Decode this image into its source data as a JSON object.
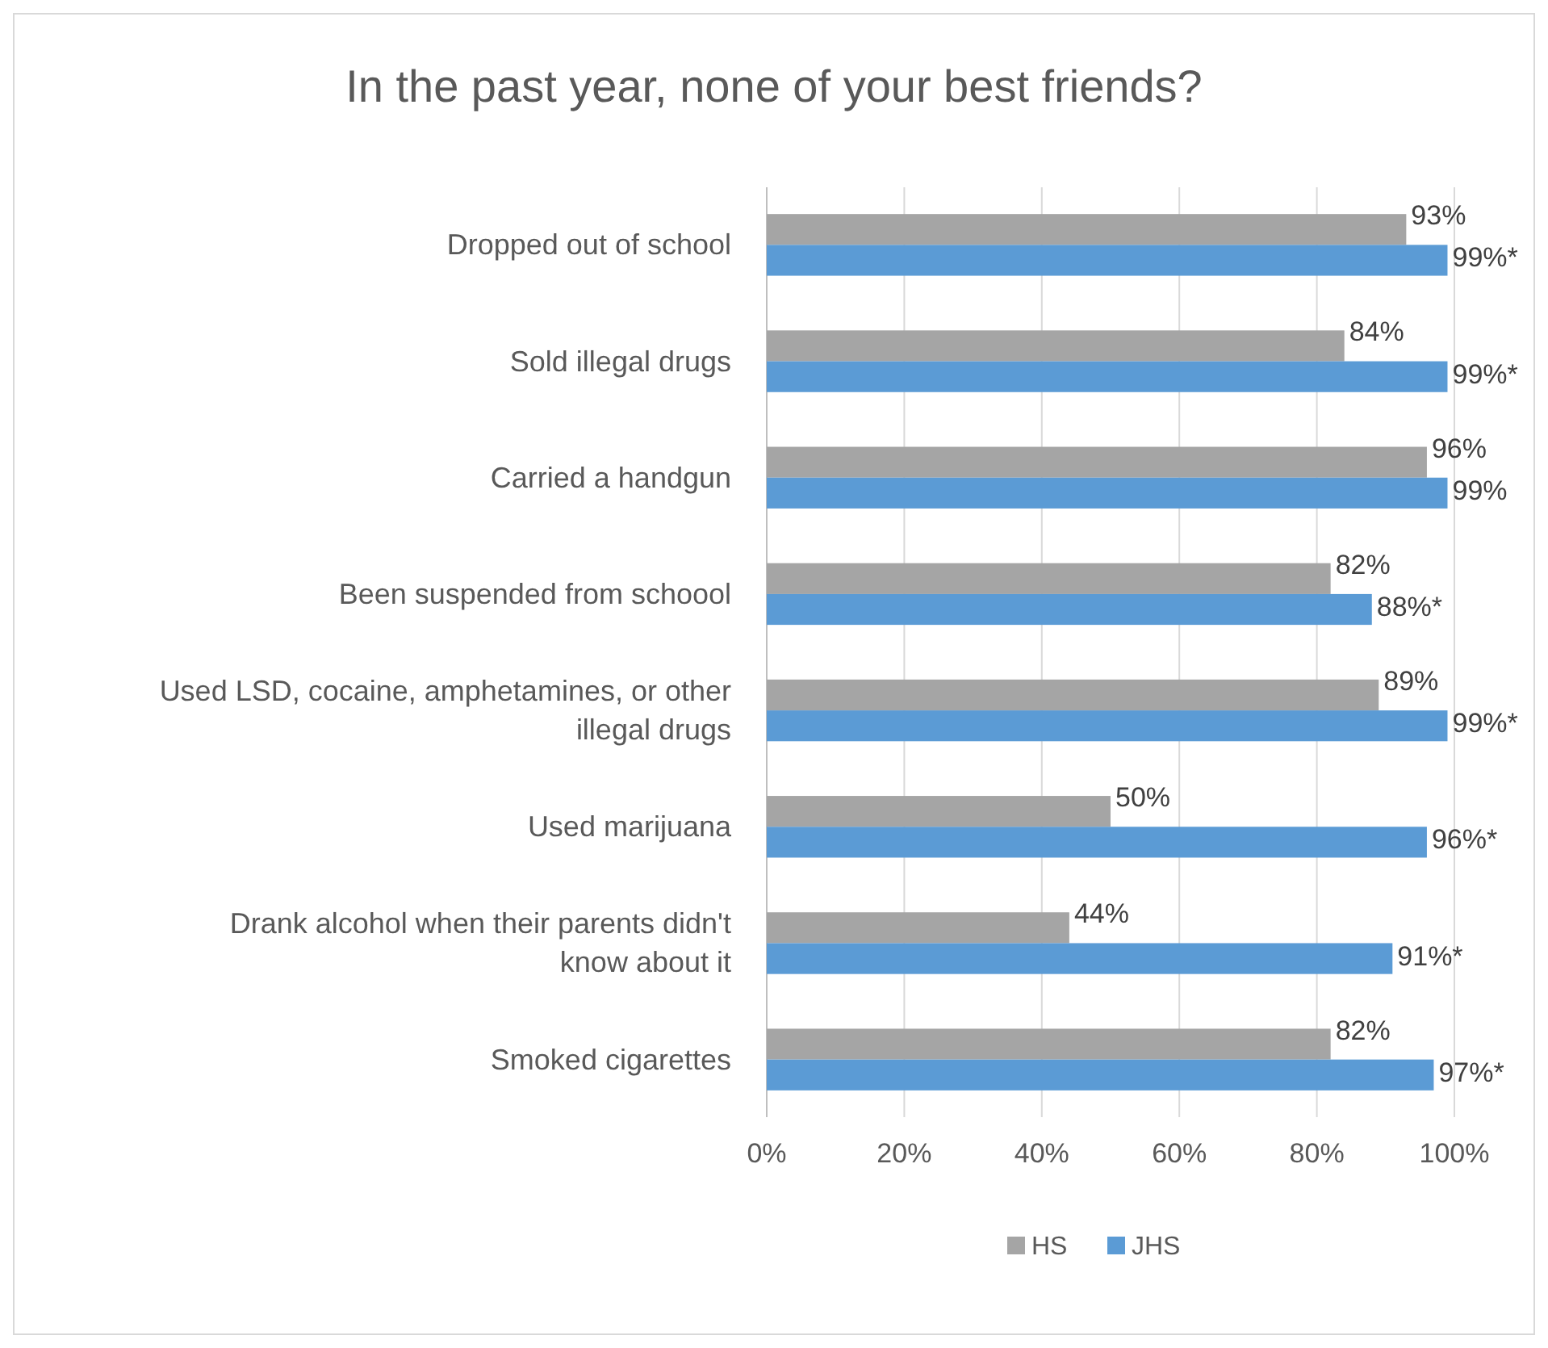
{
  "chart_data": {
    "type": "bar",
    "orientation": "horizontal",
    "title": "In the past year, none of your best friends?",
    "categories": [
      "Dropped out of school",
      "Sold illegal drugs",
      "Carried a handgun",
      "Been suspended from schoool",
      "Used LSD, cocaine, amphetamines, or other illegal drugs",
      "Used marijuana",
      "Drank alcohol when their parents didn't know about it",
      "Smoked cigarettes"
    ],
    "series": [
      {
        "name": "HS",
        "color": "#a5a5a5",
        "values": [
          93,
          84,
          96,
          82,
          89,
          50,
          44,
          82
        ],
        "value_labels": [
          "93%",
          "84%",
          "96%",
          "82%",
          "89%",
          "50%",
          "44%",
          "82%"
        ]
      },
      {
        "name": "JHS",
        "color": "#5b9bd5",
        "values": [
          99,
          99,
          99,
          88,
          99,
          96,
          91,
          97
        ],
        "value_labels": [
          "99%*",
          "99%*",
          "99%",
          "88%*",
          "99%*",
          "96%*",
          "91%*",
          "97%*"
        ]
      }
    ],
    "xlim": [
      0,
      100
    ],
    "xticks": [
      {
        "value": 0,
        "label": "0%"
      },
      {
        "value": 20,
        "label": "20%"
      },
      {
        "value": 40,
        "label": "40%"
      },
      {
        "value": 60,
        "label": "60%"
      },
      {
        "value": 80,
        "label": "80%"
      },
      {
        "value": 100,
        "label": "100%"
      }
    ],
    "grid": "x",
    "legend": "bottom"
  }
}
